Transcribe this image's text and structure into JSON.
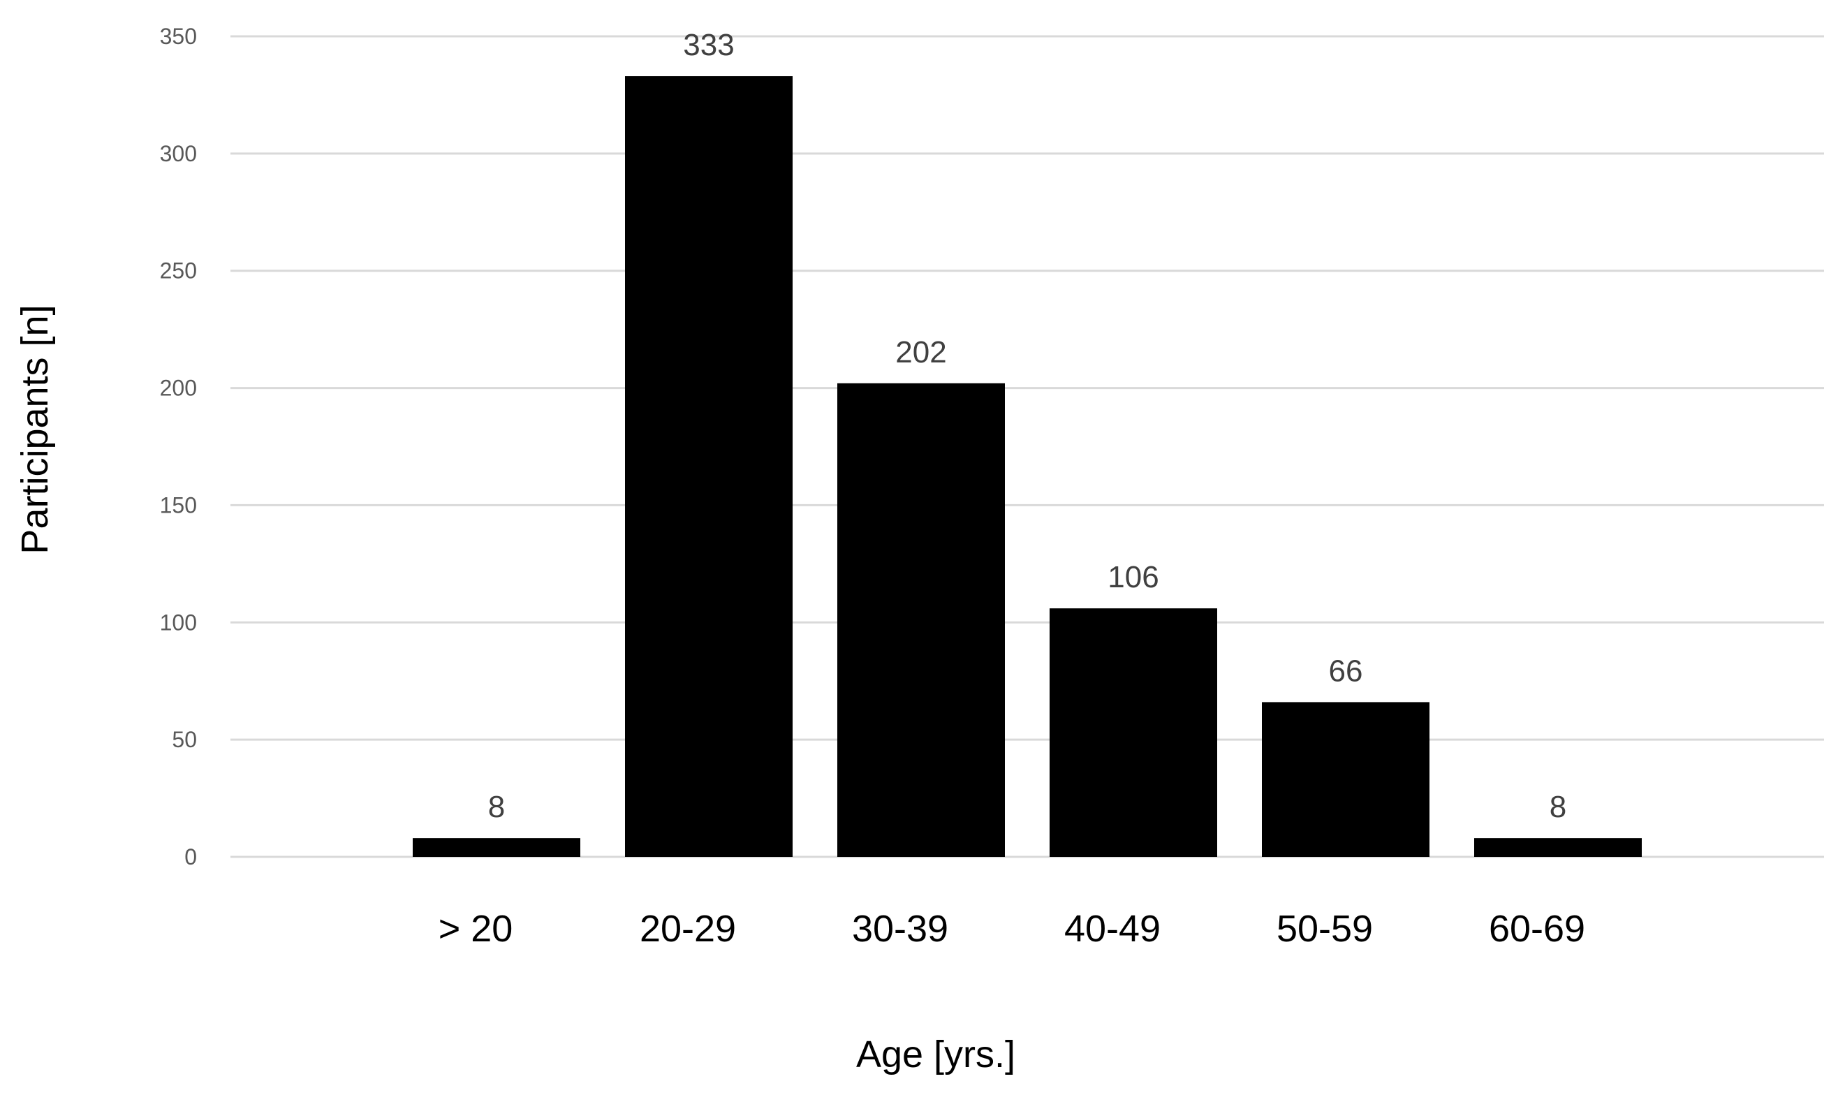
{
  "chart_data": {
    "type": "bar",
    "categories": [
      "> 20",
      "20-29",
      "30-39",
      "40-49",
      "50-59",
      "60-69"
    ],
    "values": [
      8,
      333,
      202,
      106,
      66,
      8
    ],
    "data_labels": [
      "8",
      "333",
      "202",
      "106",
      "66",
      "8"
    ],
    "xlabel": "Age [yrs.]",
    "ylabel": "Participants [n]",
    "ylim": [
      0,
      350
    ],
    "yticks": [
      0,
      50,
      100,
      150,
      200,
      250,
      300,
      350
    ],
    "ytick_labels": [
      "0",
      "50",
      "100",
      "150",
      "200",
      "250",
      "300",
      "350"
    ],
    "grid": true,
    "legend": "none",
    "colors": {
      "bar": "#000000",
      "grid": "#d9d9d9",
      "tick_text": "#595959",
      "label_text": "#404040"
    }
  }
}
